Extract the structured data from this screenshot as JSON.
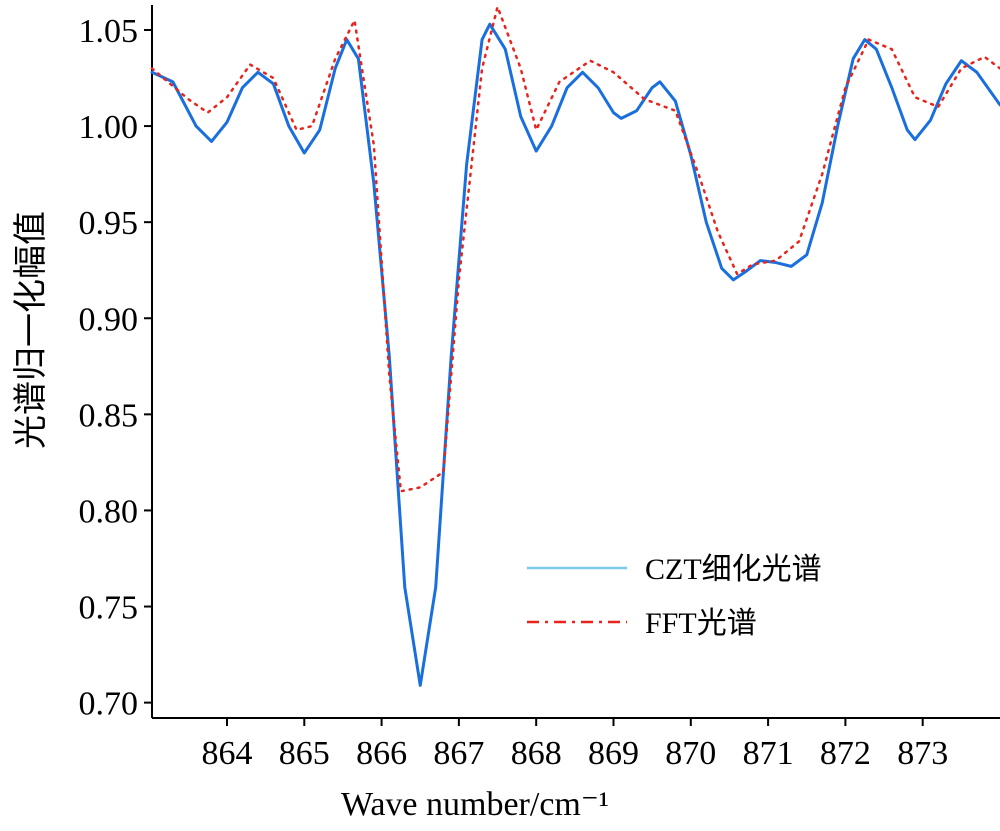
{
  "chart_data": {
    "type": "line",
    "xlabel": "Wave number/cm⁻¹",
    "ylabel": "光谱归一化幅值",
    "xlim": [
      863.03,
      874.0
    ],
    "ylim": [
      0.692,
      1.063
    ],
    "xticks": [
      864,
      865,
      866,
      867,
      868,
      869,
      870,
      871,
      872,
      873
    ],
    "yticks": [
      {
        "value": 0.7,
        "label": "0.70"
      },
      0.75,
      {
        "value": 0.8,
        "label": "0.80"
      },
      0.85,
      {
        "value": 0.9,
        "label": "0.90"
      },
      0.95,
      {
        "value": 1,
        "label": "1.00"
      },
      1.05
    ],
    "grid": false,
    "legend": "lower right",
    "series": [
      {
        "name": "CZT细化光谱",
        "color": "#1a6fdf",
        "legend_color": "#7cc9f2",
        "style": "solid",
        "x": [
          863.03,
          863.3,
          863.6,
          863.8,
          864.0,
          864.2,
          864.4,
          864.6,
          864.8,
          865.0,
          865.2,
          865.4,
          865.55,
          865.7,
          865.9,
          866.1,
          866.3,
          866.5,
          866.7,
          866.9,
          867.1,
          867.3,
          867.4,
          867.6,
          867.8,
          868.0,
          868.2,
          868.4,
          868.6,
          868.8,
          869.0,
          869.1,
          869.3,
          869.5,
          869.6,
          869.8,
          870.0,
          870.2,
          870.4,
          870.55,
          870.7,
          870.9,
          871.1,
          871.3,
          871.5,
          871.7,
          871.9,
          872.1,
          872.25,
          872.4,
          872.6,
          872.8,
          872.9,
          873.1,
          873.3,
          873.5,
          873.7,
          874.0
        ],
        "values": [
          1.028,
          1.023,
          1.0,
          0.992,
          1.002,
          1.02,
          1.028,
          1.022,
          1.0,
          0.986,
          0.998,
          1.03,
          1.045,
          1.035,
          0.97,
          0.88,
          0.76,
          0.709,
          0.76,
          0.88,
          0.98,
          1.045,
          1.053,
          1.04,
          1.005,
          0.987,
          1.0,
          1.02,
          1.028,
          1.02,
          1.007,
          1.004,
          1.008,
          1.02,
          1.023,
          1.013,
          0.985,
          0.95,
          0.926,
          0.92,
          0.924,
          0.93,
          0.929,
          0.927,
          0.933,
          0.96,
          1.0,
          1.035,
          1.045,
          1.04,
          1.02,
          0.998,
          0.993,
          1.003,
          1.022,
          1.034,
          1.028,
          1.011
        ]
      },
      {
        "name": "FFT光谱",
        "color": "#e8251d",
        "style": "dotted",
        "x": [
          863.03,
          863.5,
          863.75,
          864.0,
          864.3,
          864.6,
          864.9,
          865.1,
          865.4,
          865.65,
          865.9,
          866.1,
          866.25,
          866.5,
          866.8,
          867.0,
          867.3,
          867.5,
          867.8,
          868.0,
          868.3,
          868.7,
          869.0,
          869.4,
          869.8,
          870.1,
          870.35,
          870.6,
          870.8,
          871.1,
          871.4,
          871.7,
          872.0,
          872.3,
          872.6,
          872.9,
          873.2,
          873.5,
          873.8,
          874.0
        ],
        "values": [
          1.03,
          1.014,
          1.007,
          1.015,
          1.032,
          1.025,
          0.998,
          1.0,
          1.035,
          1.055,
          0.99,
          0.87,
          0.81,
          0.812,
          0.82,
          0.92,
          1.03,
          1.062,
          1.03,
          0.998,
          1.023,
          1.034,
          1.028,
          1.014,
          1.008,
          0.975,
          0.945,
          0.923,
          0.928,
          0.93,
          0.94,
          0.975,
          1.02,
          1.045,
          1.04,
          1.015,
          1.01,
          1.03,
          1.036,
          1.03
        ]
      }
    ]
  }
}
